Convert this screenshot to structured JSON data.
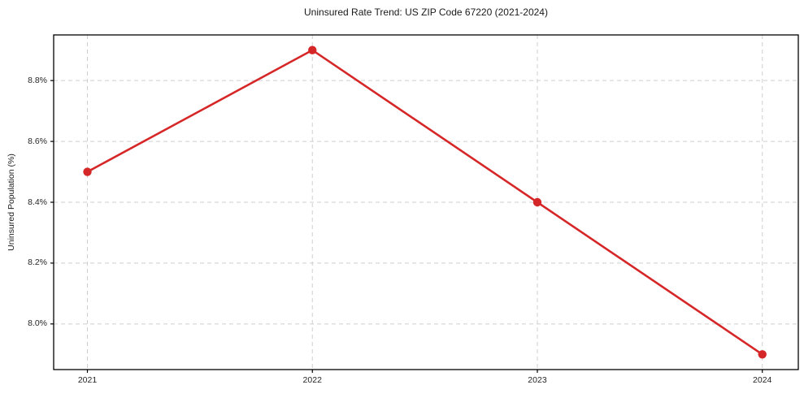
{
  "chart_data": {
    "type": "line",
    "title": "Uninsured Rate Trend: US ZIP Code 67220 (2021-2024)",
    "xlabel": "",
    "ylabel": "Uninsured Population (%)",
    "x": [
      2021,
      2022,
      2023,
      2024
    ],
    "xtick_labels": [
      "2021",
      "2022",
      "2023",
      "2024"
    ],
    "series": [
      {
        "name": "Uninsured Population (%)",
        "values": [
          8.5,
          8.9,
          8.4,
          7.9
        ]
      }
    ],
    "yticks": [
      8.0,
      8.2,
      8.4,
      8.6,
      8.8
    ],
    "ytick_labels": [
      "8.0%",
      "8.2%",
      "8.4%",
      "8.6%",
      "8.8%"
    ],
    "xlim": [
      2020.85,
      2024.16
    ],
    "ylim": [
      7.85,
      8.95
    ],
    "grid": true,
    "grid_style": "dashed",
    "legend_position": "none",
    "colors": {
      "line": "#d62728",
      "marker": "#d62728",
      "grid": "#cfcfcf",
      "spine": "#000000",
      "text": "#1a1a1a"
    }
  }
}
